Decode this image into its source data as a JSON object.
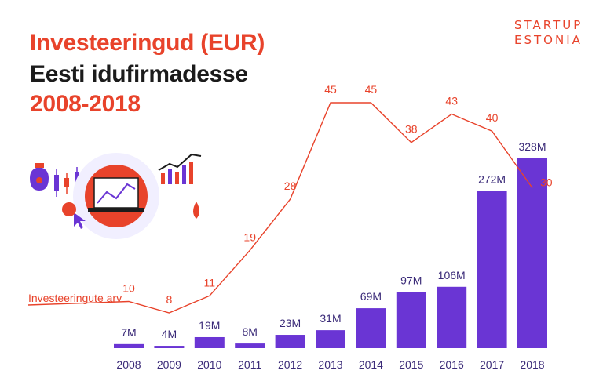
{
  "title": {
    "line1": "Investeeringud (EUR)",
    "line2": "Eesti idufirmadesse",
    "line3": "2008-2018"
  },
  "logo": {
    "line1": "STARTUP",
    "line2": "ESTONIA"
  },
  "colors": {
    "bar": "#6a35d4",
    "line": "#e8432b",
    "title_accent": "#e8432b",
    "title_dark": "#1b1b1b"
  },
  "chart_data": {
    "type": "bar",
    "categories": [
      "2008",
      "2009",
      "2010",
      "2011",
      "2012",
      "2013",
      "2014",
      "2015",
      "2016",
      "2017",
      "2018"
    ],
    "series": [
      {
        "values": [
          7,
          4,
          19,
          8,
          23,
          31,
          69,
          97,
          106,
          272,
          328
        ],
        "labels": [
          "7M",
          "4M",
          "19M",
          "8M",
          "23M",
          "31M",
          "69M",
          "97M",
          "106M",
          "272M",
          "328M"
        ]
      },
      {
        "name": "Investeeringute arv",
        "type": "line",
        "values": [
          10,
          8,
          11,
          19,
          28,
          45,
          45,
          38,
          43,
          40,
          30
        ]
      }
    ],
    "ylim": [
      0,
      330
    ]
  },
  "illustration": {
    "icons": [
      "money-bag-icon",
      "candlestick-chart-icon",
      "laptop-chart-icon",
      "bar-growth-chart-icon",
      "cursor-icon",
      "coin-icon",
      "drop-coin-icon"
    ]
  }
}
